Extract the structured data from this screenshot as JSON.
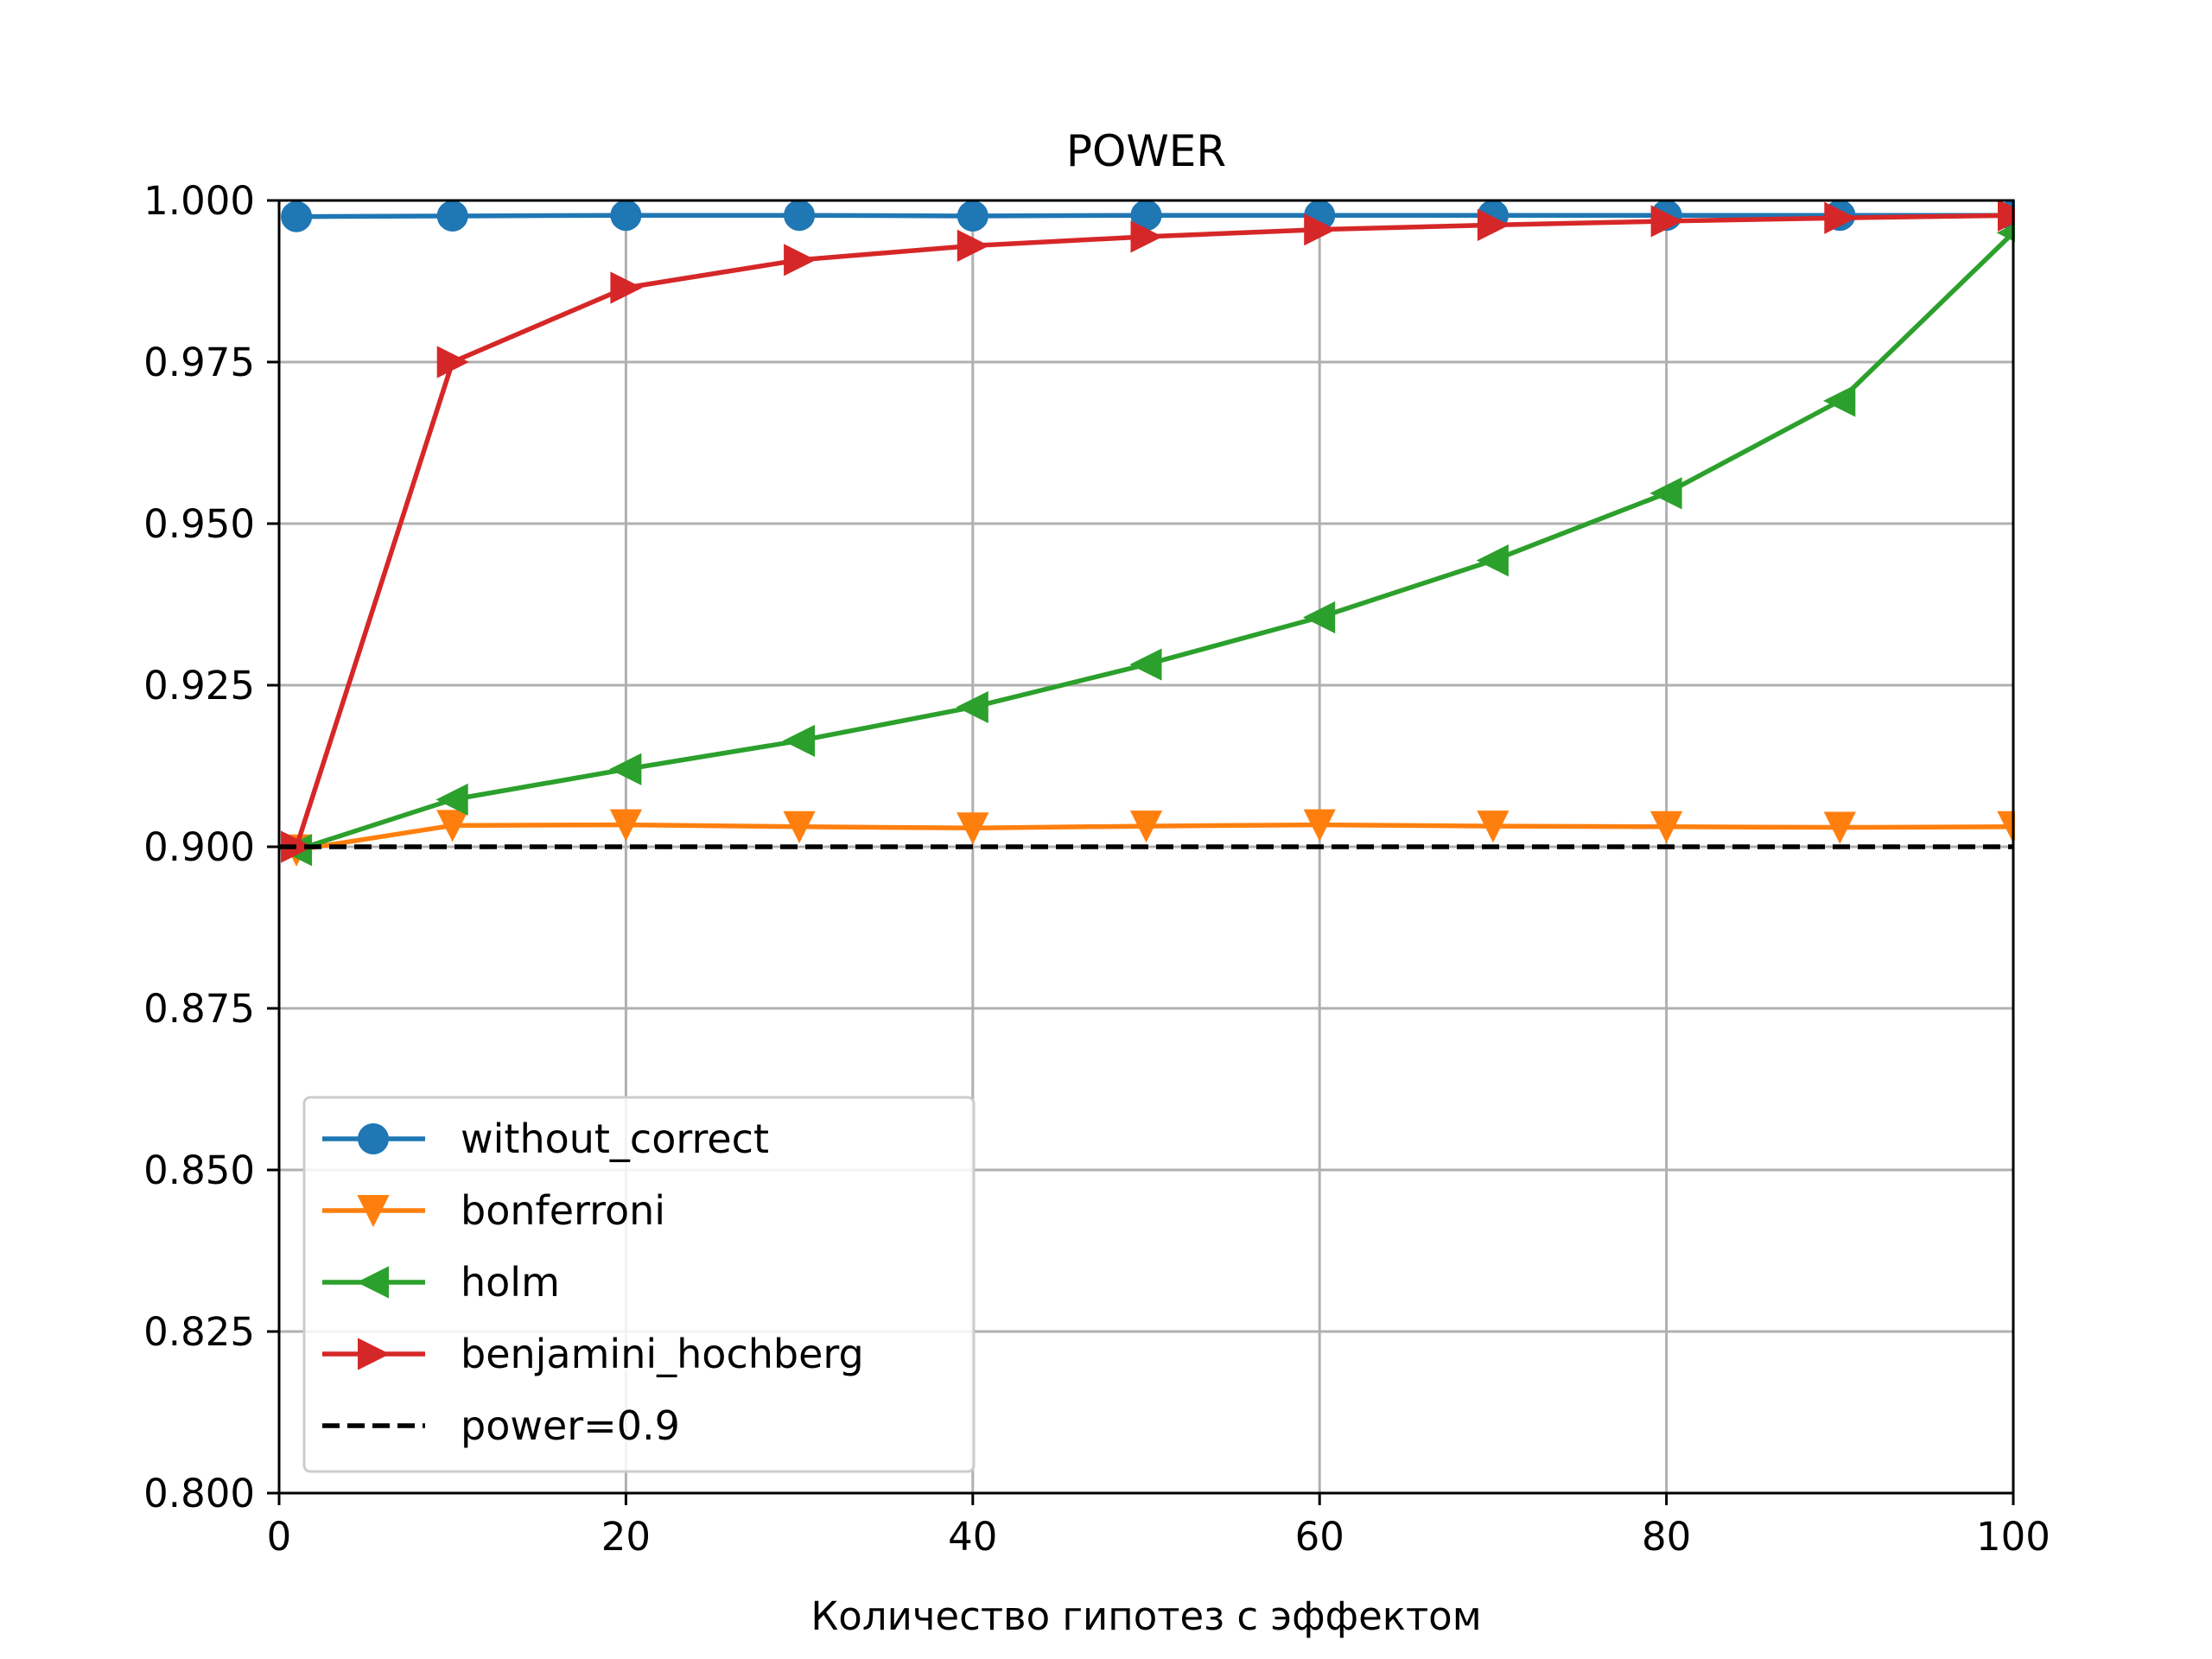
{
  "chart_data": {
    "type": "line",
    "title": "POWER",
    "xlabel": "Количество гипотез с эффектом",
    "ylabel": "",
    "xlim": [
      0,
      100
    ],
    "ylim": [
      0.8,
      1.0
    ],
    "xticks": [
      "0",
      "20",
      "40",
      "60",
      "80",
      "100"
    ],
    "yticks": [
      "0.800",
      "0.825",
      "0.850",
      "0.875",
      "0.900",
      "0.925",
      "0.950",
      "0.975",
      "1.000"
    ],
    "grid": true,
    "legend_position": "lower-left",
    "x": [
      1,
      10,
      20,
      30,
      40,
      50,
      60,
      70,
      80,
      90,
      100
    ],
    "series": [
      {
        "name": "without_correct",
        "color": "#1f77b4",
        "marker": "circle",
        "values": [
          0.9975,
          0.9976,
          0.9977,
          0.9977,
          0.9976,
          0.9977,
          0.9977,
          0.9977,
          0.9977,
          0.9977,
          0.9977
        ]
      },
      {
        "name": "bonferroni",
        "color": "#ff7f0e",
        "marker": "triangle-down",
        "values": [
          0.8995,
          0.9033,
          0.9034,
          0.9031,
          0.9029,
          0.9032,
          0.9034,
          0.9032,
          0.9031,
          0.903,
          0.9031
        ]
      },
      {
        "name": "holm",
        "color": "#2ca02c",
        "marker": "triangle-left",
        "values": [
          0.8995,
          0.9073,
          0.912,
          0.9164,
          0.9216,
          0.9282,
          0.9355,
          0.9443,
          0.9547,
          0.969,
          0.995
        ]
      },
      {
        "name": "benjamini_hochberg",
        "color": "#d62728",
        "marker": "triangle-right",
        "values": [
          0.9,
          0.975,
          0.9865,
          0.9908,
          0.993,
          0.9944,
          0.9955,
          0.9962,
          0.9968,
          0.9973,
          0.9977
        ]
      }
    ],
    "reference_line": {
      "name": "power=0.9",
      "y": 0.9,
      "color": "#000000",
      "style": "dashed"
    }
  }
}
